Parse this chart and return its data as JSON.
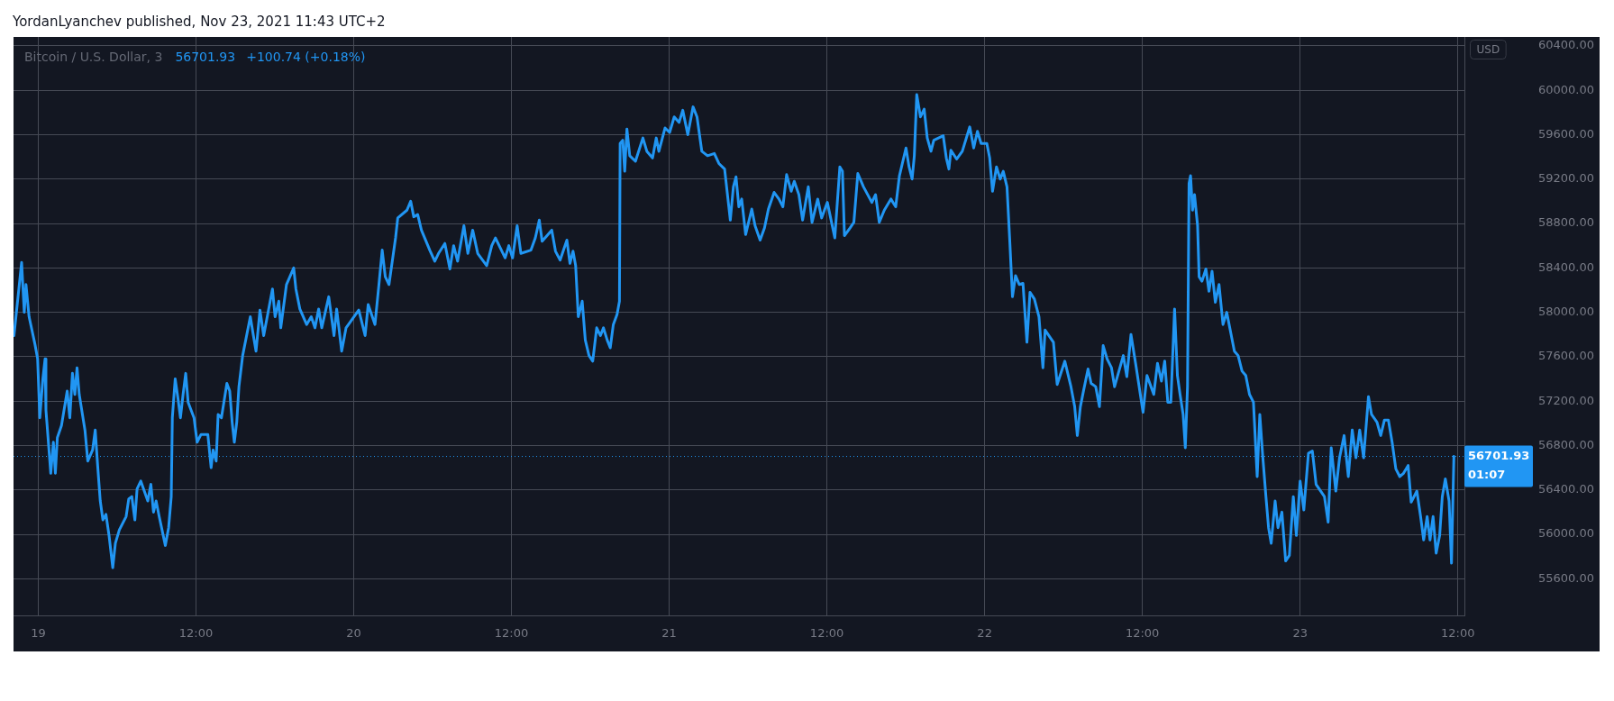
{
  "chart_data": {
    "type": "line",
    "title": "YordanLyanchev published, Nov 23, 2021 11:43 UTC+2",
    "subtitle": "Bitcoin / U.S. Dollar, 3",
    "ylabel": "USD",
    "annotations": [
      "56701.93",
      "+100.74 (+0.18%)",
      "01:07"
    ],
    "color": "#2196f3",
    "grid": true,
    "xlim": [
      "2021-11-18T22:07",
      "2021-11-23T12:30"
    ],
    "xticks": [
      {
        "value": "2021-11-19",
        "label": "19"
      },
      {
        "value": "2021-11-19T12:00",
        "label": "12:00"
      },
      {
        "value": "2021-11-20",
        "label": "20"
      },
      {
        "value": "2021-11-20T12:00",
        "label": "12:00"
      },
      {
        "value": "2021-11-21",
        "label": "21"
      },
      {
        "value": "2021-11-21T12:00",
        "label": "12:00"
      },
      {
        "value": "2021-11-22",
        "label": "22"
      },
      {
        "value": "2021-11-22T12:00",
        "label": "12:00"
      },
      {
        "value": "2021-11-23",
        "label": "23"
      },
      {
        "value": "2021-11-23T12:00",
        "label": "12:00"
      }
    ],
    "ylim": [
      55270,
      60480
    ],
    "yticks": [
      {
        "value": 55600,
        "label": "55600.00"
      },
      {
        "value": 56000,
        "label": "56000.00"
      },
      {
        "value": 56400,
        "label": "56400.00"
      },
      {
        "value": 56800,
        "label": "56800.00"
      },
      {
        "value": 57200,
        "label": "57200.00"
      },
      {
        "value": 57600,
        "label": "57600.00"
      },
      {
        "value": 58000,
        "label": "58000.00"
      },
      {
        "value": 58400,
        "label": "58400.00"
      },
      {
        "value": 58800,
        "label": "58800.00"
      },
      {
        "value": 59200,
        "label": "59200.00"
      },
      {
        "value": 59600,
        "label": "59600.00"
      },
      {
        "value": 60000,
        "label": "60000.00"
      },
      {
        "value": 60400,
        "label": "60400.00"
      }
    ],
    "ref_lines": [
      {
        "axis": "y",
        "value": 56701.93,
        "label": "56701.93",
        "color": "#2196f3",
        "line_style": "dotted"
      }
    ],
    "x": [
      "2021-11-18T22:09",
      "2021-11-18T22:44",
      "2021-11-18T22:56",
      "2021-11-18T23:04",
      "2021-11-18T23:18",
      "2021-11-18T23:44",
      "2021-11-18T23:57",
      "2021-11-19T00:07",
      "2021-11-19T00:21",
      "2021-11-19T00:31",
      "2021-11-19T00:35",
      "2021-11-19T00:57",
      "2021-11-19T01:09",
      "2021-11-19T01:18",
      "2021-11-19T01:27",
      "2021-11-19T01:46",
      "2021-11-19T02:12",
      "2021-11-19T02:24",
      "2021-11-19T02:36",
      "2021-11-19T02:47",
      "2021-11-19T02:57",
      "2021-11-19T03:07",
      "2021-11-19T03:33",
      "2021-11-19T03:46",
      "2021-11-19T04:08",
      "2021-11-19T04:20",
      "2021-11-19T04:31",
      "2021-11-19T04:43",
      "2021-11-19T04:55",
      "2021-11-19T05:09",
      "2021-11-19T05:23",
      "2021-11-19T05:40",
      "2021-11-19T05:52",
      "2021-11-19T06:10",
      "2021-11-19T06:41",
      "2021-11-19T06:53",
      "2021-11-19T07:07",
      "2021-11-19T07:21",
      "2021-11-19T07:31",
      "2021-11-19T07:48",
      "2021-11-19T08:20",
      "2021-11-19T08:34",
      "2021-11-19T08:46",
      "2021-11-19T08:58",
      "2021-11-19T09:12",
      "2021-11-19T09:40",
      "2021-11-19T09:55",
      "2021-11-19T10:07",
      "2021-11-19T10:12",
      "2021-11-19T10:25",
      "2021-11-19T10:38",
      "2021-11-19T10:49",
      "2021-11-19T11:01",
      "2021-11-19T11:13",
      "2021-11-19T11:24",
      "2021-11-19T11:51",
      "2021-11-19T12:05",
      "2021-11-19T12:23",
      "2021-11-19T12:54",
      "2021-11-19T13:09",
      "2021-11-19T13:18",
      "2021-11-19T13:32",
      "2021-11-19T13:41",
      "2021-11-19T13:56",
      "2021-11-19T14:21",
      "2021-11-19T14:34",
      "2021-11-19T14:45",
      "2021-11-19T14:55",
      "2021-11-19T15:06",
      "2021-11-19T15:16",
      "2021-11-19T15:33",
      "2021-11-19T16:08",
      "2021-11-19T16:22",
      "2021-11-19T16:34",
      "2021-11-19T16:52",
      "2021-11-19T17:09",
      "2021-11-19T17:49",
      "2021-11-19T18:01",
      "2021-11-19T18:18",
      "2021-11-19T18:27",
      "2021-11-19T18:53",
      "2021-11-19T19:26",
      "2021-11-19T19:36",
      "2021-11-19T19:54",
      "2021-11-19T20:25",
      "2021-11-19T20:46",
      "2021-11-19T21:03",
      "2021-11-19T21:20",
      "2021-11-19T21:34",
      "2021-11-19T22:06",
      "2021-11-19T22:30",
      "2021-11-19T22:42",
      "2021-11-19T23:05",
      "2021-11-19T23:25",
      "2021-11-20T00:23",
      "2021-11-20T00:52",
      "2021-11-20T01:06",
      "2021-11-20T01:37",
      "2021-11-20T01:55",
      "2021-11-20T02:10",
      "2021-11-20T02:24",
      "2021-11-20T02:41",
      "2021-11-20T03:11",
      "2021-11-20T03:21",
      "2021-11-20T04:03",
      "2021-11-20T04:20",
      "2021-11-20T04:34",
      "2021-11-20T04:52",
      "2021-11-20T05:09",
      "2021-11-20T05:47",
      "2021-11-20T06:10",
      "2021-11-20T06:27",
      "2021-11-20T06:56",
      "2021-11-20T07:19",
      "2021-11-20T07:36",
      "2021-11-20T07:54",
      "2021-11-20T08:23",
      "2021-11-20T08:41",
      "2021-11-20T09:03",
      "2021-11-20T09:26",
      "2021-11-20T10:07",
      "2021-11-20T10:30",
      "2021-11-20T10:47",
      "2021-11-20T11:31",
      "2021-11-20T11:48",
      "2021-11-20T12:05",
      "2021-11-20T12:26",
      "2021-11-20T12:43",
      "2021-11-20T13:29",
      "2021-11-20T13:49",
      "2021-11-20T14:07",
      "2021-11-20T14:20",
      "2021-11-20T15:04",
      "2021-11-20T15:21",
      "2021-11-20T15:42",
      "2021-11-20T16:13",
      "2021-11-20T16:27",
      "2021-11-20T16:41",
      "2021-11-20T16:53",
      "2021-11-20T17:05",
      "2021-11-20T17:23",
      "2021-11-20T17:37",
      "2021-11-20T17:54",
      "2021-11-20T18:11",
      "2021-11-20T18:29",
      "2021-11-20T18:46",
      "2021-11-20T19:00",
      "2021-11-20T19:17",
      "2021-11-20T19:31",
      "2021-11-20T19:45",
      "2021-11-20T20:02",
      "2021-11-20T20:13",
      "2021-11-20T20:16",
      "2021-11-20T20:28",
      "2021-11-20T20:37",
      "2021-11-20T20:47",
      "2021-11-20T21:00",
      "2021-11-20T21:26",
      "2021-11-20T22:00",
      "2021-11-20T22:18",
      "2021-11-20T22:44",
      "2021-11-20T23:01",
      "2021-11-20T23:13",
      "2021-11-20T23:41",
      "2021-11-21T00:02",
      "2021-11-21T00:23",
      "2021-11-21T00:45",
      "2021-11-21T01:02",
      "2021-11-21T01:25",
      "2021-11-21T01:49",
      "2021-11-21T02:07",
      "2021-11-21T02:29",
      "2021-11-21T02:55",
      "2021-11-21T03:26",
      "2021-11-21T03:47",
      "2021-11-21T04:13",
      "2021-11-21T04:39",
      "2021-11-21T04:53",
      "2021-11-21T05:05",
      "2021-11-21T05:18",
      "2021-11-21T05:31",
      "2021-11-21T05:49",
      "2021-11-21T06:17",
      "2021-11-21T06:32",
      "2021-11-21T06:55",
      "2021-11-21T07:15",
      "2021-11-21T07:33",
      "2021-11-21T07:59",
      "2021-11-21T08:21",
      "2021-11-21T08:39",
      "2021-11-21T08:56",
      "2021-11-21T09:17",
      "2021-11-21T09:31",
      "2021-11-21T09:52",
      "2021-11-21T10:09",
      "2021-11-21T10:35",
      "2021-11-21T10:52",
      "2021-11-21T11:18",
      "2021-11-21T11:36",
      "2021-11-21T12:02",
      "2021-11-21T12:36",
      "2021-11-21T12:59",
      "2021-11-21T13:11",
      "2021-11-21T13:20",
      "2021-11-21T13:46",
      "2021-11-21T14:03",
      "2021-11-21T14:21",
      "2021-11-21T14:47",
      "2021-11-21T15:25",
      "2021-11-21T15:42",
      "2021-11-21T15:59",
      "2021-11-21T16:22",
      "2021-11-21T16:52",
      "2021-11-21T17:14",
      "2021-11-21T17:31",
      "2021-11-21T18:01",
      "2021-11-21T18:15",
      "2021-11-21T18:29",
      "2021-11-21T18:39",
      "2021-11-21T18:50",
      "2021-11-21T19:07",
      "2021-11-21T19:24",
      "2021-11-21T19:38",
      "2021-11-21T19:55",
      "2021-11-21T20:08",
      "2021-11-21T20:51",
      "2021-11-21T21:05",
      "2021-11-21T21:17",
      "2021-11-21T21:26",
      "2021-11-21T21:52",
      "2021-11-21T22:18",
      "2021-11-21T22:52",
      "2021-11-21T23:10",
      "2021-11-21T23:27",
      "2021-11-21T23:44",
      "2021-11-22T00:10",
      "2021-11-22T00:23",
      "2021-11-22T00:36",
      "2021-11-22T00:54",
      "2021-11-22T01:11",
      "2021-11-22T01:25",
      "2021-11-22T01:42",
      "2021-11-22T01:55",
      "2021-11-22T02:07",
      "2021-11-22T02:21",
      "2021-11-22T02:38",
      "2021-11-22T02:55",
      "2021-11-22T03:13",
      "2021-11-22T03:27",
      "2021-11-22T03:47",
      "2021-11-22T04:08",
      "2021-11-22T04:26",
      "2021-11-22T04:36",
      "2021-11-22T05:14",
      "2021-11-22T05:31",
      "2021-11-22T06:06",
      "2021-11-22T06:34",
      "2021-11-22T06:51",
      "2021-11-22T07:03",
      "2021-11-22T07:17",
      "2021-11-22T07:31",
      "2021-11-22T07:52",
      "2021-11-22T08:06",
      "2021-11-22T08:27",
      "2021-11-22T08:44",
      "2021-11-22T09:01",
      "2021-11-22T09:19",
      "2021-11-22T09:39",
      "2021-11-22T09:53",
      "2021-11-22T10:33",
      "2021-11-22T10:49",
      "2021-11-22T11:08",
      "2021-11-22T11:29",
      "2021-11-22T12:03",
      "2021-11-22T12:21",
      "2021-11-22T12:52",
      "2021-11-22T13:09",
      "2021-11-22T13:27",
      "2021-11-22T13:42",
      "2021-11-22T13:56",
      "2021-11-22T14:10",
      "2021-11-22T14:27",
      "2021-11-22T14:40",
      "2021-11-22T14:52",
      "2021-11-22T15:06",
      "2021-11-22T15:16",
      "2021-11-22T15:26",
      "2021-11-22T15:33",
      "2021-11-22T15:40",
      "2021-11-22T15:49",
      "2021-11-22T15:58",
      "2021-11-22T16:12",
      "2021-11-22T16:19",
      "2021-11-22T16:32",
      "2021-11-22T16:50",
      "2021-11-22T17:04",
      "2021-11-22T17:18",
      "2021-11-22T17:33",
      "2021-11-22T17:50",
      "2021-11-22T18:08",
      "2021-11-22T18:25",
      "2021-11-22T18:43",
      "2021-11-22T19:00",
      "2021-11-22T19:17",
      "2021-11-22T19:35",
      "2021-11-22T19:52",
      "2021-11-22T20:09",
      "2021-11-22T20:27",
      "2021-11-22T20:44",
      "2021-11-22T20:56",
      "2021-11-22T21:10",
      "2021-11-22T21:24",
      "2021-11-22T21:36",
      "2021-11-22T21:48",
      "2021-11-22T22:06",
      "2021-11-22T22:19",
      "2021-11-22T22:37",
      "2021-11-22T22:54",
      "2021-11-22T23:11",
      "2021-11-22T23:29",
      "2021-11-22T23:43",
      "2021-11-23T00:00",
      "2021-11-23T00:17",
      "2021-11-23T00:38",
      "2021-11-23T00:56",
      "2021-11-23T01:13",
      "2021-11-23T01:51",
      "2021-11-23T02:08",
      "2021-11-23T02:22",
      "2021-11-23T02:43",
      "2021-11-23T03:00",
      "2021-11-23T03:21",
      "2021-11-23T03:40",
      "2021-11-23T03:58",
      "2021-11-23T04:15",
      "2021-11-23T04:32",
      "2021-11-23T04:50",
      "2021-11-23T05:12",
      "2021-11-23T05:26",
      "2021-11-23T05:51",
      "2021-11-23T06:08",
      "2021-11-23T06:25",
      "2021-11-23T06:43",
      "2021-11-23T07:00",
      "2021-11-23T07:17",
      "2021-11-23T07:35",
      "2021-11-23T07:52",
      "2021-11-23T08:13",
      "2021-11-23T08:27",
      "2021-11-23T08:53",
      "2021-11-23T09:10",
      "2021-11-23T09:24",
      "2021-11-23T09:40",
      "2021-11-23T09:53",
      "2021-11-23T10:07",
      "2021-11-23T10:21",
      "2021-11-23T10:37",
      "2021-11-23T10:49",
      "2021-11-23T11:03",
      "2021-11-23T11:20",
      "2021-11-23T11:31",
      "2021-11-23T11:42"
    ],
    "values": [
      57790,
      58450,
      58000,
      58250,
      57960,
      57720,
      57580,
      57050,
      57400,
      57580,
      57120,
      56550,
      56830,
      56550,
      56870,
      56980,
      57290,
      57050,
      57450,
      57260,
      57500,
      57260,
      56940,
      56660,
      56760,
      56940,
      56620,
      56300,
      56130,
      56180,
      55990,
      55700,
      55920,
      56040,
      56160,
      56320,
      56340,
      56130,
      56410,
      56480,
      56300,
      56450,
      56200,
      56300,
      56160,
      55900,
      56060,
      56340,
      57050,
      57400,
      57220,
      57050,
      57260,
      57450,
      57190,
      57050,
      56830,
      56900,
      56900,
      56600,
      56760,
      56660,
      57080,
      57050,
      57360,
      57290,
      57010,
      56830,
      57010,
      57330,
      57610,
      57960,
      57790,
      57650,
      58020,
      57790,
      58210,
      57960,
      58100,
      57860,
      58250,
      58400,
      58210,
      58030,
      57890,
      57960,
      57860,
      58030,
      57860,
      58140,
      57790,
      58030,
      57650,
      57860,
      58020,
      57790,
      58070,
      57890,
      58250,
      58560,
      58320,
      58250,
      58670,
      58850,
      58920,
      59000,
      58860,
      58880,
      58740,
      58560,
      58460,
      58530,
      58620,
      58390,
      58600,
      58460,
      58780,
      58530,
      58740,
      58530,
      58420,
      58600,
      58670,
      58490,
      58600,
      58490,
      58780,
      58530,
      58560,
      58670,
      58830,
      58640,
      58740,
      58550,
      58470,
      58650,
      58440,
      58550,
      58420,
      57960,
      58100,
      57750,
      57610,
      57560,
      57860,
      57790,
      57860,
      57750,
      57680,
      57890,
      57980,
      58100,
      59520,
      59550,
      59270,
      59650,
      59410,
      59360,
      59570,
      59450,
      59390,
      59570,
      59450,
      59660,
      59620,
      59760,
      59710,
      59820,
      59600,
      59850,
      59760,
      59450,
      59410,
      59430,
      59340,
      59290,
      58830,
      59130,
      59220,
      58950,
      59020,
      58700,
      58930,
      58780,
      58650,
      58760,
      58930,
      59080,
      59020,
      58950,
      59240,
      59090,
      59180,
      59060,
      58830,
      59130,
      58810,
      59020,
      58850,
      58990,
      58670,
      59310,
      59270,
      58690,
      58760,
      58810,
      59250,
      59130,
      58990,
      59060,
      58810,
      58920,
      59020,
      58950,
      59230,
      59480,
      59310,
      59200,
      59410,
      59960,
      59760,
      59830,
      59570,
      59450,
      59550,
      59590,
      59390,
      59290,
      59460,
      59380,
      59450,
      59670,
      59480,
      59630,
      59520,
      59520,
      59390,
      59090,
      59310,
      59200,
      59270,
      59130,
      58630,
      58140,
      58330,
      58250,
      58260,
      57730,
      58180,
      58120,
      57960,
      57500,
      57840,
      57730,
      57350,
      57560,
      57330,
      57150,
      56890,
      57150,
      57290,
      57490,
      57360,
      57330,
      57150,
      57700,
      57580,
      57500,
      57330,
      57610,
      57420,
      57800,
      57540,
      57100,
      57430,
      57260,
      57540,
      57380,
      57560,
      57190,
      57190,
      58030,
      57430,
      57260,
      57080,
      56780,
      57330,
      59160,
      59230,
      58920,
      59060,
      58780,
      58320,
      58280,
      58390,
      58190,
      58370,
      58090,
      58250,
      57890,
      58000,
      57820,
      57650,
      57610,
      57470,
      57430,
      57260,
      57190,
      56520,
      57080,
      56690,
      56340,
      56060,
      55920,
      56300,
      56060,
      56200,
      55760,
      55810,
      56340,
      55990,
      56480,
      56220,
      56730,
      56750,
      56450,
      56340,
      56110,
      56780,
      56390,
      56690,
      56890,
      56520,
      56940,
      56690,
      56940,
      56690,
      57240,
      57080,
      57010,
      56890,
      57030,
      57030,
      56830,
      56590,
      56520,
      56550,
      56620,
      56290,
      56390,
      56160,
      55950,
      56160,
      55950,
      56160,
      55830,
      55990,
      56340,
      56500,
      56300,
      55740,
      56701.93
    ]
  }
}
